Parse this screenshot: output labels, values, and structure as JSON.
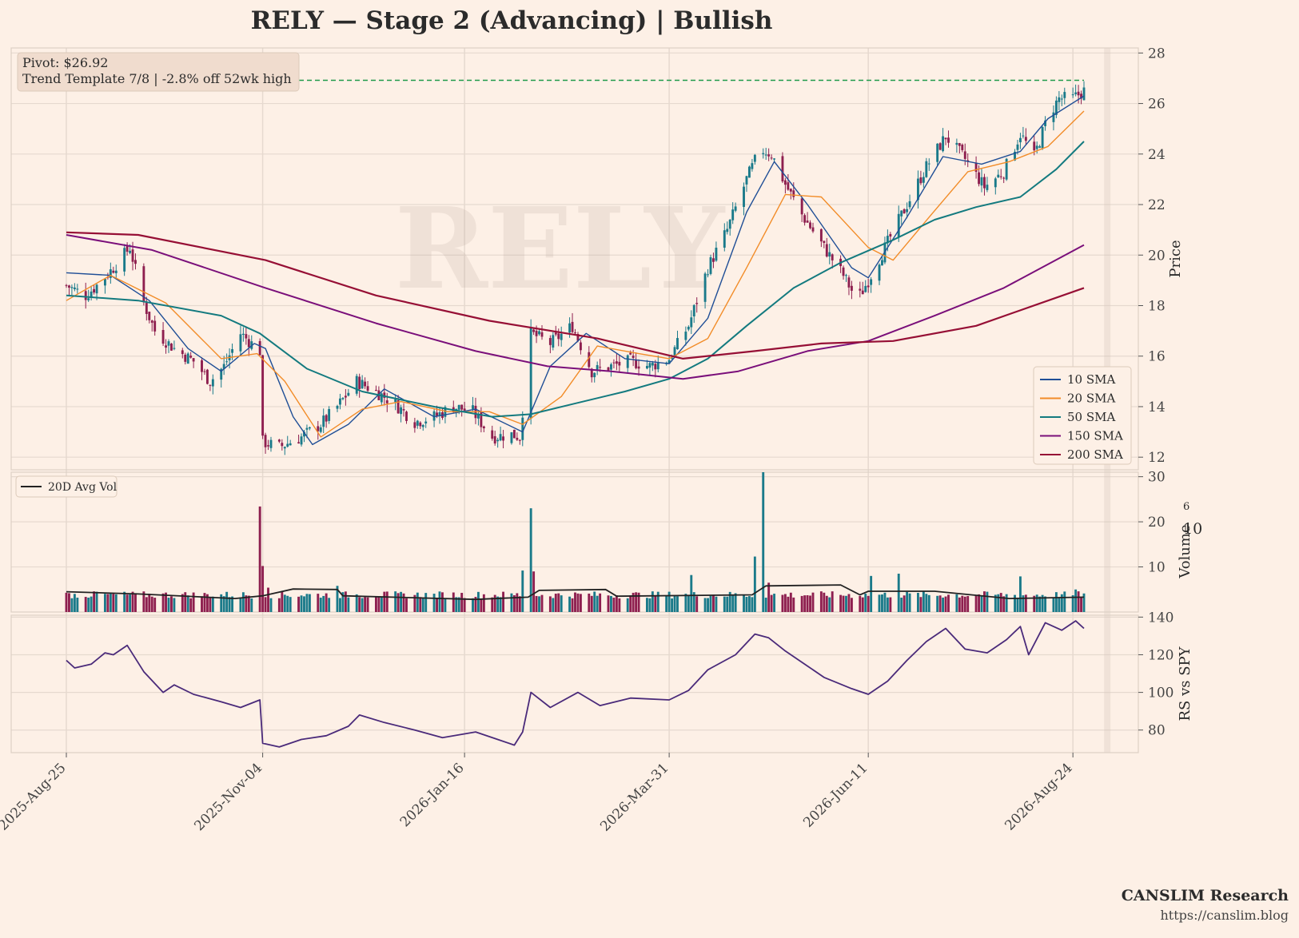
{
  "title": "RELY  —  Stage 2 (Advancing)  |  Bullish",
  "watermark": "RELY",
  "annotation": {
    "pivot": "Pivot: $26.92",
    "trend": "Trend Template 7/8  |  -2.8% off 52wk high"
  },
  "footer": {
    "brand": "CANSLIM Research",
    "url": "https://canslim.blog"
  },
  "colors": {
    "background": "#fdf0e6",
    "up_candle": "#1a7a8a",
    "down_candle": "#8e1f4f",
    "sma10": "#1f4e96",
    "sma20": "#f28c28",
    "sma50": "#137a7f",
    "sma150": "#7a0f7a",
    "sma200": "#960f35",
    "pivot_line": "#1f9a4a",
    "rs_line": "#4a2a7a",
    "avg_vol": "#222222",
    "grid": "#e6d9cf"
  },
  "chart_data": [
    {
      "type": "candlestick",
      "panel": "price",
      "ylabel": "Price",
      "ylim": [
        11.5,
        28.2
      ],
      "yticks": [
        12,
        14,
        16,
        18,
        20,
        22,
        24,
        26,
        28
      ],
      "x_range": [
        "2025-08-25",
        "2026-08-28"
      ],
      "xtick_labels": [
        "2025-Aug-25",
        "2025-Nov-04",
        "2026-Jan-16",
        "2026-Mar-31",
        "2026-Jun-11",
        "2026-Aug-24"
      ],
      "pivot": 26.92,
      "price_anchors": [
        [
          "2025-08-25",
          18.8
        ],
        [
          "2025-09-01",
          18.4
        ],
        [
          "2025-09-06",
          18.9
        ],
        [
          "2025-09-11",
          19.5
        ],
        [
          "2025-09-17",
          20.3
        ],
        [
          "2025-09-22",
          18.1
        ],
        [
          "2025-09-26",
          17.0
        ],
        [
          "2025-10-03",
          16.3
        ],
        [
          "2025-10-10",
          15.8
        ],
        [
          "2025-10-16",
          15.0
        ],
        [
          "2025-10-21",
          15.6
        ],
        [
          "2025-10-27",
          16.9
        ],
        [
          "2025-11-03",
          16.2
        ],
        [
          "2025-11-04",
          12.6
        ],
        [
          "2025-11-10",
          12.4
        ],
        [
          "2025-11-18",
          12.8
        ],
        [
          "2025-11-25",
          13.3
        ],
        [
          "2025-12-01",
          14.0
        ],
        [
          "2025-12-08",
          15.0
        ],
        [
          "2025-12-15",
          14.6
        ],
        [
          "2025-12-22",
          14.1
        ],
        [
          "2025-12-29",
          13.4
        ],
        [
          "2026-01-05",
          13.6
        ],
        [
          "2026-01-12",
          14.0
        ],
        [
          "2026-01-19",
          13.8
        ],
        [
          "2026-01-26",
          12.8
        ],
        [
          "2026-02-02",
          12.9
        ],
        [
          "2026-02-05",
          12.8
        ],
        [
          "2026-02-09",
          16.9
        ],
        [
          "2026-02-16",
          16.5
        ],
        [
          "2026-02-24",
          17.2
        ],
        [
          "2026-03-03",
          15.4
        ],
        [
          "2026-03-10",
          15.6
        ],
        [
          "2026-03-17",
          15.8
        ],
        [
          "2026-03-24",
          15.6
        ],
        [
          "2026-03-31",
          15.9
        ],
        [
          "2026-04-07",
          17.2
        ],
        [
          "2026-04-14",
          19.5
        ],
        [
          "2026-04-21",
          21.0
        ],
        [
          "2026-04-28",
          23.0
        ],
        [
          "2026-05-03",
          24.2
        ],
        [
          "2026-05-07",
          24.0
        ],
        [
          "2026-05-12",
          22.8
        ],
        [
          "2026-05-18",
          21.6
        ],
        [
          "2026-05-26",
          20.3
        ],
        [
          "2026-06-02",
          19.2
        ],
        [
          "2026-06-07",
          18.2
        ],
        [
          "2026-06-11",
          19.0
        ],
        [
          "2026-06-18",
          20.5
        ],
        [
          "2026-06-25",
          22.0
        ],
        [
          "2026-07-02",
          23.5
        ],
        [
          "2026-07-09",
          24.7
        ],
        [
          "2026-07-16",
          23.8
        ],
        [
          "2026-07-23",
          22.7
        ],
        [
          "2026-07-30",
          23.3
        ],
        [
          "2026-08-05",
          24.8
        ],
        [
          "2026-08-10",
          23.9
        ],
        [
          "2026-08-15",
          25.5
        ],
        [
          "2026-08-19",
          26.2
        ],
        [
          "2026-08-24",
          26.2
        ],
        [
          "2026-08-28",
          26.5
        ]
      ],
      "sma10": [
        [
          "2025-08-25",
          19.3
        ],
        [
          "2025-09-10",
          19.2
        ],
        [
          "2025-09-24",
          18.2
        ],
        [
          "2025-10-08",
          16.3
        ],
        [
          "2025-10-20",
          15.4
        ],
        [
          "2025-11-01",
          16.5
        ],
        [
          "2025-11-05",
          16.3
        ],
        [
          "2025-11-15",
          13.6
        ],
        [
          "2025-11-22",
          12.5
        ],
        [
          "2025-12-05",
          13.3
        ],
        [
          "2025-12-18",
          14.7
        ],
        [
          "2026-01-05",
          13.6
        ],
        [
          "2026-01-20",
          13.9
        ],
        [
          "2026-02-06",
          13.0
        ],
        [
          "2026-02-16",
          15.6
        ],
        [
          "2026-03-01",
          16.9
        ],
        [
          "2026-03-15",
          15.9
        ],
        [
          "2026-03-31",
          15.7
        ],
        [
          "2026-04-14",
          17.5
        ],
        [
          "2026-04-28",
          21.7
        ],
        [
          "2026-05-08",
          23.7
        ],
        [
          "2026-05-20",
          22.0
        ],
        [
          "2026-06-05",
          19.5
        ],
        [
          "2026-06-11",
          19.1
        ],
        [
          "2026-06-25",
          21.5
        ],
        [
          "2026-07-08",
          23.9
        ],
        [
          "2026-07-22",
          23.6
        ],
        [
          "2026-08-05",
          24.1
        ],
        [
          "2026-08-15",
          25.4
        ],
        [
          "2026-08-28",
          26.3
        ]
      ],
      "sma20": [
        [
          "2025-08-25",
          18.2
        ],
        [
          "2025-09-10",
          19.2
        ],
        [
          "2025-09-30",
          18.1
        ],
        [
          "2025-10-20",
          15.9
        ],
        [
          "2025-11-02",
          16.1
        ],
        [
          "2025-11-12",
          15.0
        ],
        [
          "2025-11-25",
          12.8
        ],
        [
          "2025-12-10",
          13.9
        ],
        [
          "2025-12-24",
          14.2
        ],
        [
          "2026-01-10",
          13.8
        ],
        [
          "2026-01-25",
          13.8
        ],
        [
          "2026-02-06",
          13.3
        ],
        [
          "2026-02-20",
          14.4
        ],
        [
          "2026-03-05",
          16.4
        ],
        [
          "2026-03-20",
          16.1
        ],
        [
          "2026-03-31",
          15.9
        ],
        [
          "2026-04-14",
          16.7
        ],
        [
          "2026-04-28",
          19.5
        ],
        [
          "2026-05-12",
          22.4
        ],
        [
          "2026-05-25",
          22.3
        ],
        [
          "2026-06-11",
          20.3
        ],
        [
          "2026-06-20",
          19.8
        ],
        [
          "2026-07-03",
          21.5
        ],
        [
          "2026-07-17",
          23.3
        ],
        [
          "2026-08-01",
          23.7
        ],
        [
          "2026-08-15",
          24.3
        ],
        [
          "2026-08-28",
          25.7
        ]
      ],
      "sma50": [
        [
          "2025-08-25",
          18.4
        ],
        [
          "2025-09-20",
          18.2
        ],
        [
          "2025-10-20",
          17.6
        ],
        [
          "2025-11-03",
          16.9
        ],
        [
          "2025-11-20",
          15.5
        ],
        [
          "2025-12-10",
          14.6
        ],
        [
          "2026-01-05",
          14.0
        ],
        [
          "2026-01-26",
          13.6
        ],
        [
          "2026-02-09",
          13.7
        ],
        [
          "2026-02-24",
          14.1
        ],
        [
          "2026-03-15",
          14.6
        ],
        [
          "2026-03-31",
          15.1
        ],
        [
          "2026-04-14",
          15.9
        ],
        [
          "2026-04-28",
          17.2
        ],
        [
          "2026-05-15",
          18.7
        ],
        [
          "2026-06-01",
          19.7
        ],
        [
          "2026-06-20",
          20.6
        ],
        [
          "2026-07-05",
          21.4
        ],
        [
          "2026-07-20",
          21.9
        ],
        [
          "2026-08-05",
          22.3
        ],
        [
          "2026-08-18",
          23.4
        ],
        [
          "2026-08-28",
          24.5
        ]
      ],
      "sma150": [
        [
          "2025-08-25",
          20.8
        ],
        [
          "2025-09-25",
          20.2
        ],
        [
          "2025-11-05",
          18.7
        ],
        [
          "2025-12-15",
          17.3
        ],
        [
          "2026-01-20",
          16.2
        ],
        [
          "2026-02-15",
          15.6
        ],
        [
          "2026-03-10",
          15.4
        ],
        [
          "2026-04-05",
          15.1
        ],
        [
          "2026-04-25",
          15.4
        ],
        [
          "2026-05-20",
          16.2
        ],
        [
          "2026-06-11",
          16.6
        ],
        [
          "2026-07-05",
          17.6
        ],
        [
          "2026-07-30",
          18.7
        ],
        [
          "2026-08-28",
          20.4
        ]
      ],
      "sma200": [
        [
          "2025-08-25",
          20.9
        ],
        [
          "2025-09-20",
          20.8
        ],
        [
          "2025-11-05",
          19.8
        ],
        [
          "2025-12-15",
          18.4
        ],
        [
          "2026-01-25",
          17.4
        ],
        [
          "2026-03-05",
          16.7
        ],
        [
          "2026-04-05",
          15.9
        ],
        [
          "2026-05-01",
          16.2
        ],
        [
          "2026-05-25",
          16.5
        ],
        [
          "2026-06-20",
          16.6
        ],
        [
          "2026-07-20",
          17.2
        ],
        [
          "2026-08-28",
          18.7
        ]
      ],
      "legend": [
        "10 SMA",
        "20 SMA",
        "50 SMA",
        "150 SMA",
        "200 SMA"
      ],
      "legend_position": "lower-right",
      "grid": true
    },
    {
      "type": "bar",
      "panel": "volume",
      "ylabel": "Volume",
      "scale_label": "10",
      "scale_exponent": "6",
      "ylim": [
        0,
        31
      ],
      "yticks": [
        10,
        20,
        30
      ],
      "baseline_volume": 3.0,
      "volume_spikes": [
        [
          "2025-09-05",
          4.5
        ],
        [
          "2025-11-01",
          5.2
        ],
        [
          "2025-11-03",
          23.4
        ],
        [
          "2025-11-04",
          10.2
        ],
        [
          "2025-11-06",
          5.4
        ],
        [
          "2025-12-01",
          5.8
        ],
        [
          "2026-02-06",
          9.2
        ],
        [
          "2026-02-09",
          23.0
        ],
        [
          "2026-02-10",
          9.0
        ],
        [
          "2026-04-08",
          8.2
        ],
        [
          "2026-05-01",
          12.3
        ],
        [
          "2026-05-04",
          31.0
        ],
        [
          "2026-05-06",
          6.5
        ],
        [
          "2026-06-12",
          8.0
        ],
        [
          "2026-06-22",
          8.5
        ],
        [
          "2026-08-05",
          7.9
        ],
        [
          "2026-08-25",
          5.0
        ]
      ],
      "avg_volume": [
        [
          "2025-08-25",
          4.5
        ],
        [
          "2025-09-20",
          4.0
        ],
        [
          "2025-10-25",
          3.0
        ],
        [
          "2025-11-04",
          3.6
        ],
        [
          "2025-11-15",
          5.1
        ],
        [
          "2025-12-01",
          5.0
        ],
        [
          "2025-12-03",
          3.6
        ],
        [
          "2026-01-20",
          2.8
        ],
        [
          "2026-02-08",
          3.3
        ],
        [
          "2026-02-12",
          4.8
        ],
        [
          "2026-03-08",
          5.0
        ],
        [
          "2026-03-12",
          3.5
        ],
        [
          "2026-04-30",
          3.8
        ],
        [
          "2026-05-05",
          5.8
        ],
        [
          "2026-06-01",
          6.0
        ],
        [
          "2026-06-08",
          3.8
        ],
        [
          "2026-06-11",
          4.6
        ],
        [
          "2026-07-05",
          4.6
        ],
        [
          "2026-08-01",
          3.0
        ],
        [
          "2026-08-28",
          3.3
        ]
      ],
      "legend": [
        "20D Avg Vol"
      ],
      "legend_position": "top-left",
      "grid": true
    },
    {
      "type": "line",
      "panel": "relative-strength",
      "ylabel": "RS vs SPY",
      "ylim": [
        68,
        141
      ],
      "yticks": [
        80,
        100,
        120,
        140
      ],
      "values": [
        [
          "2025-08-25",
          117
        ],
        [
          "2025-08-28",
          113
        ],
        [
          "2025-09-03",
          115
        ],
        [
          "2025-09-08",
          121
        ],
        [
          "2025-09-11",
          120
        ],
        [
          "2025-09-16",
          125
        ],
        [
          "2025-09-22",
          111
        ],
        [
          "2025-09-29",
          100
        ],
        [
          "2025-10-03",
          104
        ],
        [
          "2025-10-10",
          99
        ],
        [
          "2025-10-20",
          95
        ],
        [
          "2025-10-27",
          92
        ],
        [
          "2025-11-03",
          96
        ],
        [
          "2025-11-04",
          73
        ],
        [
          "2025-11-10",
          71
        ],
        [
          "2025-11-18",
          75
        ],
        [
          "2025-11-27",
          77
        ],
        [
          "2025-12-05",
          82
        ],
        [
          "2025-12-09",
          88
        ],
        [
          "2025-12-18",
          84
        ],
        [
          "2025-12-29",
          80
        ],
        [
          "2026-01-08",
          76
        ],
        [
          "2026-01-20",
          79
        ],
        [
          "2026-01-28",
          75
        ],
        [
          "2026-02-03",
          72
        ],
        [
          "2026-02-06",
          79
        ],
        [
          "2026-02-09",
          100
        ],
        [
          "2026-02-16",
          92
        ],
        [
          "2026-02-26",
          100
        ],
        [
          "2026-03-06",
          93
        ],
        [
          "2026-03-17",
          97
        ],
        [
          "2026-03-31",
          96
        ],
        [
          "2026-04-07",
          101
        ],
        [
          "2026-04-14",
          112
        ],
        [
          "2026-04-24",
          120
        ],
        [
          "2026-05-01",
          131
        ],
        [
          "2026-05-06",
          129
        ],
        [
          "2026-05-12",
          122
        ],
        [
          "2026-05-20",
          114
        ],
        [
          "2026-05-26",
          108
        ],
        [
          "2026-06-05",
          102
        ],
        [
          "2026-06-11",
          99
        ],
        [
          "2026-06-18",
          106
        ],
        [
          "2026-06-25",
          117
        ],
        [
          "2026-07-02",
          127
        ],
        [
          "2026-07-09",
          134
        ],
        [
          "2026-07-16",
          123
        ],
        [
          "2026-07-24",
          121
        ],
        [
          "2026-07-31",
          128
        ],
        [
          "2026-08-05",
          135
        ],
        [
          "2026-08-08",
          120
        ],
        [
          "2026-08-14",
          137
        ],
        [
          "2026-08-20",
          133
        ],
        [
          "2026-08-25",
          138
        ],
        [
          "2026-08-28",
          134
        ]
      ],
      "grid": true
    }
  ]
}
